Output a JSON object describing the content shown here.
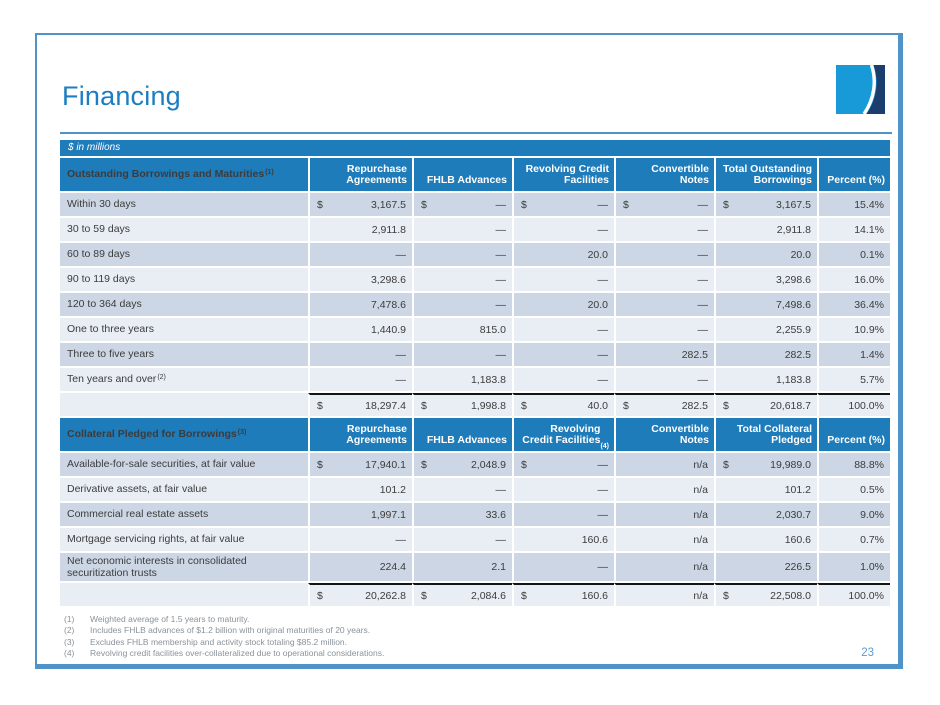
{
  "page": {
    "title": "Financing",
    "units_label": "$ in millions",
    "page_number": "23"
  },
  "colors": {
    "header_blue": "#1e7cba",
    "title_blue": "#1b7ec2",
    "frame_blue": "#4f93c9",
    "row_dark": "#ccd6e4",
    "row_light": "#e9edf4",
    "logo_light_blue": "#1899d8",
    "logo_navy": "#1c3e6e",
    "footnote_gray": "#8a9299",
    "page_number_blue": "#5b9bd5"
  },
  "icons": {
    "logo": "swoosh-square-logo"
  },
  "tables": [
    {
      "title": "Outstanding Borrowings and Maturities",
      "title_sup": "(1)",
      "columns": [
        {
          "text": "Repurchase Agreements",
          "sup": ""
        },
        {
          "text": "FHLB Advances",
          "sup": ""
        },
        {
          "text": "Revolving Credit Facilities",
          "sup": ""
        },
        {
          "text": "Convertible Notes",
          "sup": ""
        },
        {
          "text": "Total Outstanding Borrowings",
          "sup": ""
        },
        {
          "text": "Percent (%)",
          "sup": ""
        }
      ],
      "rows": [
        {
          "label": "Within 30 days",
          "sup": "",
          "dollars": true,
          "cells": [
            "3,167.5",
            "—",
            "—",
            "—",
            "3,167.5"
          ],
          "percent": "15.4%"
        },
        {
          "label": "30 to 59 days",
          "sup": "",
          "dollars": false,
          "cells": [
            "2,911.8",
            "—",
            "—",
            "—",
            "2,911.8"
          ],
          "percent": "14.1%"
        },
        {
          "label": "60 to 89 days",
          "sup": "",
          "dollars": false,
          "cells": [
            "—",
            "—",
            "20.0",
            "—",
            "20.0"
          ],
          "percent": "0.1%"
        },
        {
          "label": "90 to 119 days",
          "sup": "",
          "dollars": false,
          "cells": [
            "3,298.6",
            "—",
            "—",
            "—",
            "3,298.6"
          ],
          "percent": "16.0%"
        },
        {
          "label": "120 to 364 days",
          "sup": "",
          "dollars": false,
          "cells": [
            "7,478.6",
            "—",
            "20.0",
            "—",
            "7,498.6"
          ],
          "percent": "36.4%"
        },
        {
          "label": "One to three years",
          "sup": "",
          "dollars": false,
          "cells": [
            "1,440.9",
            "815.0",
            "—",
            "—",
            "2,255.9"
          ],
          "percent": "10.9%"
        },
        {
          "label": "Three to five years",
          "sup": "",
          "dollars": false,
          "cells": [
            "—",
            "—",
            "—",
            "282.5",
            "282.5"
          ],
          "percent": "1.4%"
        },
        {
          "label": "Ten years and over",
          "sup": "(2)",
          "dollars": false,
          "cells": [
            "—",
            "1,183.8",
            "—",
            "—",
            "1,183.8"
          ],
          "percent": "5.7%"
        }
      ],
      "total": {
        "dollars": true,
        "cells": [
          "18,297.4",
          "1,998.8",
          "40.0",
          "282.5",
          "20,618.7"
        ],
        "percent": "100.0%"
      }
    },
    {
      "title": "Collateral Pledged for Borrowings",
      "title_sup": "(3)",
      "columns": [
        {
          "text": "Repurchase Agreements",
          "sup": ""
        },
        {
          "text": "FHLB Advances",
          "sup": ""
        },
        {
          "text": "Revolving Credit Facilities",
          "sup": "(4)"
        },
        {
          "text": "Convertible Notes",
          "sup": ""
        },
        {
          "text": "Total Collateral Pledged",
          "sup": ""
        },
        {
          "text": "Percent (%)",
          "sup": ""
        }
      ],
      "rows": [
        {
          "label": "Available-for-sale securities, at fair value",
          "sup": "",
          "dollars": true,
          "cells": [
            "17,940.1",
            "2,048.9",
            "—",
            "n/a",
            "19,989.0"
          ],
          "percent": "88.8%"
        },
        {
          "label": "Derivative assets, at fair value",
          "sup": "",
          "dollars": false,
          "cells": [
            "101.2",
            "—",
            "—",
            "n/a",
            "101.2"
          ],
          "percent": "0.5%"
        },
        {
          "label": "Commercial real estate assets",
          "sup": "",
          "dollars": false,
          "cells": [
            "1,997.1",
            "33.6",
            "—",
            "n/a",
            "2,030.7"
          ],
          "percent": "9.0%"
        },
        {
          "label": "Mortgage servicing rights, at fair value",
          "sup": "",
          "dollars": false,
          "cells": [
            "—",
            "—",
            "160.6",
            "n/a",
            "160.6"
          ],
          "percent": "0.7%"
        },
        {
          "label": "Net economic interests in consolidated securitization trusts",
          "sup": "",
          "dollars": false,
          "cells": [
            "224.4",
            "2.1",
            "—",
            "n/a",
            "226.5"
          ],
          "percent": "1.0%"
        }
      ],
      "total": {
        "dollars": true,
        "cells": [
          "20,262.8",
          "2,084.6",
          "160.6",
          "n/a",
          "22,508.0"
        ],
        "percent": "100.0%"
      }
    }
  ],
  "footnotes": [
    {
      "n": "(1)",
      "text": "Weighted average of 1.5 years to maturity."
    },
    {
      "n": "(2)",
      "text": "Includes FHLB advances of $1.2 billion with original maturities of 20 years."
    },
    {
      "n": "(3)",
      "text": "Excludes FHLB membership and activity stock totaling $85.2 million."
    },
    {
      "n": "(4)",
      "text": "Revolving credit facilities over-collateralized due to operational considerations."
    }
  ]
}
